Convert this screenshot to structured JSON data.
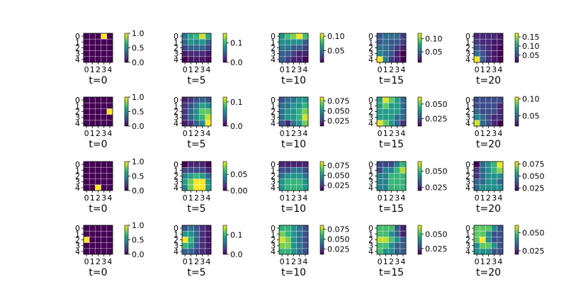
{
  "figure": {
    "panel_titles": [
      "t=0",
      "t=5",
      "t=10",
      "t=15",
      "t=20"
    ],
    "axis_tick_labels": [
      "0",
      "1",
      "2",
      "3",
      "4"
    ]
  },
  "chart_data": [
    {
      "type": "heatmap",
      "row": 0,
      "col": 0,
      "title": "t=0",
      "vmin": 0,
      "vmax": 1.0,
      "colorbar_ticks": [
        0.0,
        0.5,
        1.0
      ],
      "colorbar_tick_labels": [
        "0.0",
        "0.5",
        "1.0"
      ],
      "z": [
        [
          0,
          0,
          0,
          1,
          0
        ],
        [
          0,
          0,
          0,
          0,
          0
        ],
        [
          0,
          0,
          0,
          0,
          0
        ],
        [
          0,
          0,
          0,
          0,
          0
        ],
        [
          0,
          0,
          0,
          0,
          0
        ]
      ]
    },
    {
      "type": "heatmap",
      "row": 0,
      "col": 1,
      "title": "t=5",
      "vmin": 0,
      "vmax": 0.15,
      "colorbar_ticks": [
        0.0,
        0.1
      ],
      "colorbar_tick_labels": [
        "0.0",
        "0.1"
      ],
      "z": [
        [
          0.06,
          0.09,
          0.1,
          0.14,
          0.09
        ],
        [
          0.05,
          0.08,
          0.07,
          0.08,
          0.05
        ],
        [
          0.03,
          0.05,
          0.05,
          0.05,
          0.03
        ],
        [
          0.01,
          0.02,
          0.02,
          0.02,
          0.01
        ],
        [
          0.0,
          0.01,
          0.01,
          0.01,
          0.0
        ]
      ]
    },
    {
      "type": "heatmap",
      "row": 0,
      "col": 2,
      "title": "t=10",
      "vmin": 0.01,
      "vmax": 0.11,
      "colorbar_ticks": [
        0.05,
        0.1
      ],
      "colorbar_tick_labels": [
        "0.05",
        "0.10"
      ],
      "z": [
        [
          0.06,
          0.08,
          0.09,
          0.11,
          0.08
        ],
        [
          0.06,
          0.06,
          0.06,
          0.06,
          0.04
        ],
        [
          0.05,
          0.05,
          0.04,
          0.04,
          0.03
        ],
        [
          0.04,
          0.04,
          0.03,
          0.02,
          0.02
        ],
        [
          0.04,
          0.03,
          0.02,
          0.02,
          0.01
        ]
      ]
    },
    {
      "type": "heatmap",
      "row": 0,
      "col": 3,
      "title": "t=15",
      "vmin": 0.01,
      "vmax": 0.12,
      "colorbar_ticks": [
        0.05,
        0.1
      ],
      "colorbar_tick_labels": [
        "0.05",
        "0.10"
      ],
      "z": [
        [
          0.04,
          0.05,
          0.05,
          0.05,
          0.03
        ],
        [
          0.04,
          0.05,
          0.04,
          0.04,
          0.03
        ],
        [
          0.05,
          0.05,
          0.04,
          0.03,
          0.02
        ],
        [
          0.06,
          0.05,
          0.04,
          0.02,
          0.01
        ],
        [
          0.12,
          0.06,
          0.03,
          0.02,
          0.01
        ]
      ]
    },
    {
      "type": "heatmap",
      "row": 0,
      "col": 4,
      "title": "t=20",
      "vmin": 0.01,
      "vmax": 0.17,
      "colorbar_ticks": [
        0.05,
        0.1,
        0.15
      ],
      "colorbar_tick_labels": [
        "0.05",
        "0.10",
        "0.15"
      ],
      "z": [
        [
          0.03,
          0.03,
          0.03,
          0.03,
          0.02
        ],
        [
          0.04,
          0.03,
          0.03,
          0.02,
          0.02
        ],
        [
          0.05,
          0.04,
          0.03,
          0.02,
          0.01
        ],
        [
          0.07,
          0.05,
          0.03,
          0.02,
          0.01
        ],
        [
          0.17,
          0.06,
          0.03,
          0.02,
          0.01
        ]
      ]
    },
    {
      "type": "heatmap",
      "row": 1,
      "col": 0,
      "title": "t=0",
      "vmin": 0,
      "vmax": 1.0,
      "colorbar_ticks": [
        0.0,
        0.5,
        1.0
      ],
      "colorbar_tick_labels": [
        "0.0",
        "0.5",
        "1.0"
      ],
      "z": [
        [
          0,
          0,
          0,
          0,
          0
        ],
        [
          0,
          0,
          0,
          0,
          0
        ],
        [
          0,
          0,
          0,
          0,
          1
        ],
        [
          0,
          0,
          0,
          0,
          0
        ],
        [
          0,
          0,
          0,
          0,
          0
        ]
      ]
    },
    {
      "type": "heatmap",
      "row": 1,
      "col": 1,
      "title": "t=5",
      "vmin": 0,
      "vmax": 0.12,
      "colorbar_ticks": [
        0.0,
        0.1
      ],
      "colorbar_tick_labels": [
        "0.0",
        "0.1"
      ],
      "z": [
        [
          0.01,
          0.02,
          0.03,
          0.04,
          0.03
        ],
        [
          0.02,
          0.03,
          0.05,
          0.07,
          0.06
        ],
        [
          0.02,
          0.04,
          0.06,
          0.09,
          0.09
        ],
        [
          0.02,
          0.04,
          0.06,
          0.08,
          0.11
        ],
        [
          0.01,
          0.02,
          0.04,
          0.06,
          0.12
        ]
      ]
    },
    {
      "type": "heatmap",
      "row": 1,
      "col": 2,
      "title": "t=10",
      "vmin": 0.012,
      "vmax": 0.085,
      "colorbar_ticks": [
        0.025,
        0.05,
        0.075
      ],
      "colorbar_tick_labels": [
        "0.025",
        "0.050",
        "0.075"
      ],
      "z": [
        [
          0.03,
          0.04,
          0.04,
          0.05,
          0.05
        ],
        [
          0.04,
          0.04,
          0.05,
          0.05,
          0.06
        ],
        [
          0.04,
          0.05,
          0.05,
          0.06,
          0.07
        ],
        [
          0.04,
          0.05,
          0.05,
          0.06,
          0.08
        ],
        [
          0.03,
          0.02,
          0.04,
          0.05,
          0.07
        ]
      ]
    },
    {
      "type": "heatmap",
      "row": 1,
      "col": 3,
      "title": "t=15",
      "vmin": 0.012,
      "vmax": 0.062,
      "colorbar_ticks": [
        0.025,
        0.05
      ],
      "colorbar_tick_labels": [
        "0.025",
        "0.050"
      ],
      "z": [
        [
          0.04,
          0.06,
          0.05,
          0.04,
          0.03
        ],
        [
          0.04,
          0.05,
          0.04,
          0.04,
          0.03
        ],
        [
          0.04,
          0.04,
          0.04,
          0.04,
          0.03
        ],
        [
          0.04,
          0.04,
          0.04,
          0.03,
          0.03
        ],
        [
          0.06,
          0.05,
          0.04,
          0.03,
          0.02
        ]
      ]
    },
    {
      "type": "heatmap",
      "row": 1,
      "col": 4,
      "title": "t=20",
      "vmin": 0.02,
      "vmax": 0.105,
      "colorbar_ticks": [
        0.05,
        0.1
      ],
      "colorbar_tick_labels": [
        "0.05",
        "0.10"
      ],
      "z": [
        [
          0.04,
          0.04,
          0.04,
          0.04,
          0.04
        ],
        [
          0.04,
          0.04,
          0.04,
          0.04,
          0.03
        ],
        [
          0.05,
          0.04,
          0.04,
          0.04,
          0.03
        ],
        [
          0.06,
          0.05,
          0.04,
          0.03,
          0.03
        ],
        [
          0.1,
          0.05,
          0.04,
          0.03,
          0.02
        ]
      ]
    },
    {
      "type": "heatmap",
      "row": 2,
      "col": 0,
      "title": "t=0",
      "vmin": 0,
      "vmax": 1.0,
      "colorbar_ticks": [
        0.0,
        0.5,
        1.0
      ],
      "colorbar_tick_labels": [
        "0.0",
        "0.5",
        "1.0"
      ],
      "z": [
        [
          0,
          0,
          0,
          0,
          0
        ],
        [
          0,
          0,
          0,
          0,
          0
        ],
        [
          0,
          0,
          0,
          0,
          0
        ],
        [
          0,
          0,
          0,
          0,
          0
        ],
        [
          0,
          0,
          1,
          0,
          0
        ]
      ]
    },
    {
      "type": "heatmap",
      "row": 2,
      "col": 1,
      "title": "t=5",
      "vmin": 0,
      "vmax": 0.09,
      "colorbar_ticks": [
        0.0,
        0.05
      ],
      "colorbar_tick_labels": [
        "0.00",
        "0.05"
      ],
      "z": [
        [
          0.0,
          0.01,
          0.01,
          0.01,
          0.0
        ],
        [
          0.02,
          0.02,
          0.02,
          0.02,
          0.01
        ],
        [
          0.04,
          0.05,
          0.06,
          0.05,
          0.03
        ],
        [
          0.05,
          0.07,
          0.09,
          0.09,
          0.05
        ],
        [
          0.04,
          0.07,
          0.09,
          0.09,
          0.05
        ]
      ]
    },
    {
      "type": "heatmap",
      "row": 2,
      "col": 2,
      "title": "t=10",
      "vmin": 0.012,
      "vmax": 0.085,
      "colorbar_ticks": [
        0.025,
        0.05,
        0.075
      ],
      "colorbar_tick_labels": [
        "0.025",
        "0.050",
        "0.075"
      ],
      "z": [
        [
          0.02,
          0.02,
          0.02,
          0.02,
          0.02
        ],
        [
          0.03,
          0.03,
          0.04,
          0.04,
          0.03
        ],
        [
          0.04,
          0.05,
          0.05,
          0.05,
          0.04
        ],
        [
          0.05,
          0.06,
          0.06,
          0.06,
          0.05
        ],
        [
          0.05,
          0.06,
          0.06,
          0.06,
          0.05
        ]
      ]
    },
    {
      "type": "heatmap",
      "row": 2,
      "col": 3,
      "title": "t=15",
      "vmin": 0.02,
      "vmax": 0.065,
      "colorbar_ticks": [
        0.025,
        0.05
      ],
      "colorbar_tick_labels": [
        "0.025",
        "0.050"
      ],
      "z": [
        [
          0.03,
          0.03,
          0.03,
          0.04,
          0.05
        ],
        [
          0.03,
          0.04,
          0.04,
          0.05,
          0.06
        ],
        [
          0.04,
          0.04,
          0.05,
          0.05,
          0.05
        ],
        [
          0.04,
          0.04,
          0.05,
          0.05,
          0.05
        ],
        [
          0.04,
          0.04,
          0.05,
          0.05,
          0.05
        ]
      ]
    },
    {
      "type": "heatmap",
      "row": 2,
      "col": 4,
      "title": "t=20",
      "vmin": 0.02,
      "vmax": 0.08,
      "colorbar_ticks": [
        0.025,
        0.05,
        0.075
      ],
      "colorbar_tick_labels": [
        "0.025",
        "0.050",
        "0.075"
      ],
      "z": [
        [
          0.02,
          0.04,
          0.05,
          0.06,
          0.08
        ],
        [
          0.03,
          0.04,
          0.05,
          0.06,
          0.07
        ],
        [
          0.03,
          0.04,
          0.05,
          0.05,
          0.05
        ],
        [
          0.04,
          0.04,
          0.05,
          0.05,
          0.04
        ],
        [
          0.04,
          0.05,
          0.05,
          0.05,
          0.05
        ]
      ]
    },
    {
      "type": "heatmap",
      "row": 3,
      "col": 0,
      "title": "t=0",
      "vmin": 0,
      "vmax": 1.0,
      "colorbar_ticks": [
        0.0,
        0.5,
        1.0
      ],
      "colorbar_tick_labels": [
        "0.0",
        "0.5",
        "1.0"
      ],
      "z": [
        [
          0,
          0,
          0,
          0,
          0
        ],
        [
          0,
          0,
          0,
          0,
          0
        ],
        [
          1,
          0,
          0,
          0,
          0
        ],
        [
          0,
          0,
          0,
          0,
          0
        ],
        [
          0,
          0,
          0,
          0,
          0
        ]
      ]
    },
    {
      "type": "heatmap",
      "row": 3,
      "col": 1,
      "title": "t=5",
      "vmin": 0,
      "vmax": 0.15,
      "colorbar_ticks": [
        0.0,
        0.1
      ],
      "colorbar_tick_labels": [
        "0.0",
        "0.1"
      ],
      "z": [
        [
          0.04,
          0.06,
          0.04,
          0.02,
          0.01
        ],
        [
          0.08,
          0.08,
          0.05,
          0.02,
          0.01
        ],
        [
          0.15,
          0.1,
          0.05,
          0.02,
          0.01
        ],
        [
          0.1,
          0.08,
          0.04,
          0.02,
          0.01
        ],
        [
          0.05,
          0.05,
          0.03,
          0.02,
          0.01
        ]
      ]
    },
    {
      "type": "heatmap",
      "row": 3,
      "col": 2,
      "title": "t=10",
      "vmin": 0.012,
      "vmax": 0.085,
      "colorbar_ticks": [
        0.025,
        0.05,
        0.075
      ],
      "colorbar_tick_labels": [
        "0.025",
        "0.050",
        "0.075"
      ],
      "z": [
        [
          0.06,
          0.06,
          0.05,
          0.04,
          0.03
        ],
        [
          0.07,
          0.06,
          0.05,
          0.04,
          0.03
        ],
        [
          0.08,
          0.07,
          0.05,
          0.04,
          0.03
        ],
        [
          0.07,
          0.07,
          0.05,
          0.04,
          0.03
        ],
        [
          0.06,
          0.06,
          0.05,
          0.04,
          0.03
        ]
      ]
    },
    {
      "type": "heatmap",
      "row": 3,
      "col": 3,
      "title": "t=15",
      "vmin": 0.015,
      "vmax": 0.065,
      "colorbar_ticks": [
        0.025,
        0.05
      ],
      "colorbar_tick_labels": [
        "0.025",
        "0.050"
      ],
      "z": [
        [
          0.05,
          0.05,
          0.05,
          0.03,
          0.02
        ],
        [
          0.05,
          0.05,
          0.04,
          0.03,
          0.02
        ],
        [
          0.06,
          0.06,
          0.05,
          0.04,
          0.03
        ],
        [
          0.05,
          0.05,
          0.04,
          0.03,
          0.03
        ],
        [
          0.05,
          0.04,
          0.04,
          0.03,
          0.03
        ]
      ]
    },
    {
      "type": "heatmap",
      "row": 3,
      "col": 4,
      "title": "t=20",
      "vmin": 0.02,
      "vmax": 0.06,
      "colorbar_ticks": [
        0.025,
        0.05
      ],
      "colorbar_tick_labels": [
        "0.025",
        "0.050"
      ],
      "z": [
        [
          0.05,
          0.05,
          0.05,
          0.04,
          0.03
        ],
        [
          0.05,
          0.05,
          0.04,
          0.03,
          0.03
        ],
        [
          0.05,
          0.06,
          0.04,
          0.03,
          0.03
        ],
        [
          0.04,
          0.05,
          0.05,
          0.04,
          0.03
        ],
        [
          0.04,
          0.04,
          0.04,
          0.03,
          0.03
        ]
      ]
    }
  ]
}
